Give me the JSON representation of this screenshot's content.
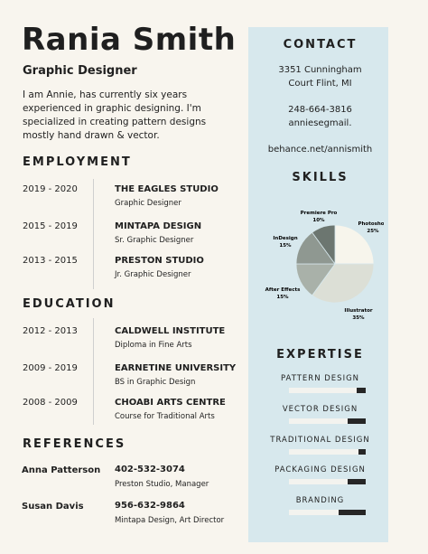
{
  "header": {
    "name": "Rania Smith",
    "role": "Graphic Designer",
    "bio": "I am Annie, has currently six years experienced in graphic designing. I'm specialized in creating pattern designs mostly hand drawn & vector."
  },
  "employment": {
    "title": "EMPLOYMENT",
    "items": [
      {
        "years": "2019 - 2020",
        "org": "THE EAGLES STUDIO",
        "position": "Graphic Designer"
      },
      {
        "years": "2015 - 2019",
        "org": "MINTAPA DESIGN",
        "position": "Sr. Graphic Designer"
      },
      {
        "years": "2013 - 2015",
        "org": "PRESTON STUDIO",
        "position": "Jr. Graphic Designer"
      }
    ]
  },
  "education": {
    "title": "EDUCATION",
    "items": [
      {
        "years": "2012 - 2013",
        "org": "CALDWELL INSTITUTE",
        "position": "Diploma in Fine Arts"
      },
      {
        "years": "2009 - 2019",
        "org": "EARNETINE UNIVERSITY",
        "position": "BS in Graphic Design"
      },
      {
        "years": "2008 - 2009",
        "org": "CHOABI ARTS CENTRE",
        "position": "Course for Traditional Arts"
      }
    ]
  },
  "references": {
    "title": "REFERENCES",
    "items": [
      {
        "name": "Anna Patterson",
        "phone": "402-532-3074",
        "detail": "Preston Studio, Manager"
      },
      {
        "name": "Susan Davis",
        "phone": "956-632-9864",
        "detail": "Mintapa Design, Art Director"
      }
    ]
  },
  "contact": {
    "title": "CONTACT",
    "address_line1": "3351 Cunningham",
    "address_line2": "Court Flint, MI",
    "phone": "248-664-3816",
    "email": "anniesegmail.",
    "website": "behance.net/annismith"
  },
  "chart_data": {
    "type": "pie",
    "title": "SKILLS",
    "categories": [
      "Photoshop",
      "Illustrator",
      "After Effects",
      "InDesign",
      "Premiere Pro"
    ],
    "values": [
      25,
      35,
      15,
      15,
      10
    ],
    "value_labels": [
      "25%",
      "35%",
      "15%",
      "15%",
      "10%"
    ],
    "colors": [
      "#f7f5ec",
      "#dcdfd6",
      "#a9b1a9",
      "#8f9891",
      "#6c7670"
    ]
  },
  "expertise": {
    "title": "EXPERTISE",
    "items": [
      {
        "label": "PATTERN DESIGN",
        "level": 88
      },
      {
        "label": "VECTOR DESIGN",
        "level": 76
      },
      {
        "label": "TRADITIONAL DESIGN",
        "level": 90
      },
      {
        "label": "PACKAGING DESIGN",
        "level": 76
      },
      {
        "label": "BRANDING",
        "level": 65
      }
    ]
  }
}
